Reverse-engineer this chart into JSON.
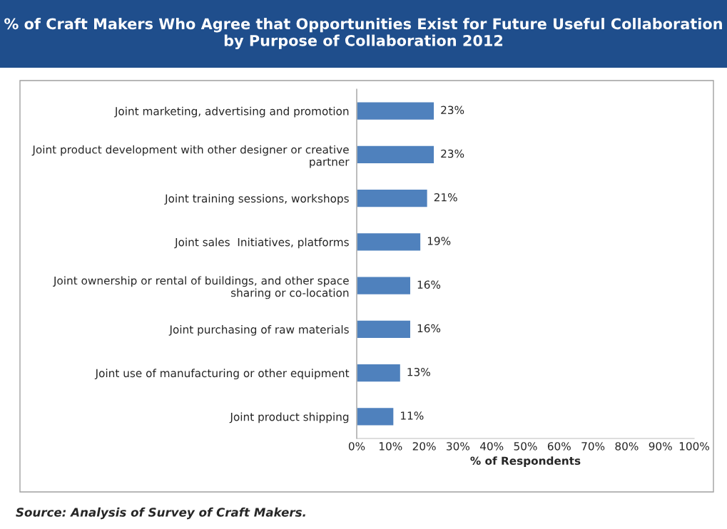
{
  "chart_data": {
    "type": "bar",
    "orientation": "horizontal",
    "title": "% of Craft Makers Who Agree that Opportunities Exist for Future Useful Collaboration by Purpose of Collaboration 2012",
    "categories": [
      "Joint marketing, advertising and promotion",
      "Joint product development with other designer or creative\npartner",
      "Joint training sessions, workshops",
      "Joint sales  Initiatives, platforms",
      "Joint ownership or rental of buildings, and other space\nsharing or co-location",
      "Joint purchasing of raw materials",
      "Joint use of manufacturing or other equipment",
      "Joint product shipping"
    ],
    "values": [
      23,
      23,
      21,
      19,
      16,
      16,
      13,
      11
    ],
    "value_labels": [
      "23%",
      "23%",
      "21%",
      "19%",
      "16%",
      "16%",
      "13%",
      "11%"
    ],
    "color": "#4f81bd",
    "xlabel": "% of Respondents",
    "xlim": [
      0,
      100
    ],
    "xticks": [
      {
        "value": 0,
        "label": "0%"
      },
      {
        "value": 10,
        "label": "10%"
      },
      {
        "value": 20,
        "label": "20%"
      },
      {
        "value": 30,
        "label": "30%"
      },
      {
        "value": 40,
        "label": "40%"
      },
      {
        "value": 50,
        "label": "50%"
      },
      {
        "value": 60,
        "label": "60%"
      },
      {
        "value": 70,
        "label": "70%"
      },
      {
        "value": 80,
        "label": "80%"
      },
      {
        "value": 90,
        "label": "90%"
      },
      {
        "value": 100,
        "label": "100%"
      }
    ],
    "grid": false,
    "legend": false,
    "annotations": [
      "Source: Analysis of Survey of Craft Makers."
    ]
  }
}
